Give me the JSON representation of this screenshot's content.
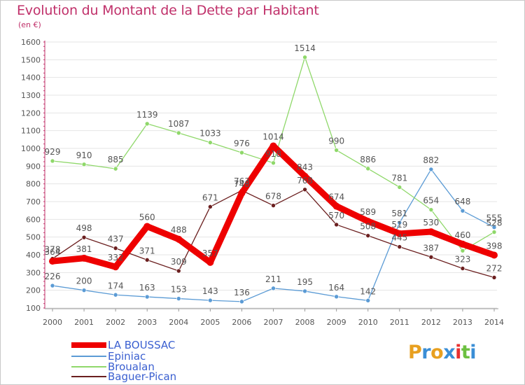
{
  "header": {
    "title": "Evolution du Montant de la Dette par Habitant",
    "unit": "(en €)"
  },
  "chart_data": {
    "type": "line",
    "x": [
      "2000",
      "2001",
      "2002",
      "2003",
      "2004",
      "2005",
      "2006",
      "2007",
      "2008",
      "2009",
      "2010",
      "2011",
      "2012",
      "2013",
      "2014"
    ],
    "ylim": [
      100,
      1600
    ],
    "yticks": [
      100,
      200,
      300,
      400,
      500,
      600,
      700,
      800,
      900,
      1000,
      1100,
      1200,
      1300,
      1400,
      1500,
      1600
    ],
    "grid": "horizontal",
    "legend_position": "bottom-left",
    "series": [
      {
        "name": "LA BOUSSAC",
        "color": "#ee0000",
        "values": [
          364,
          381,
          332,
          560,
          488,
          357,
          748,
          1014,
          843,
          674,
          589,
          519,
          530,
          460,
          398
        ]
      },
      {
        "name": "Epiniac",
        "color": "#5b9bd5",
        "values": [
          226,
          200,
          174,
          163,
          153,
          143,
          136,
          211,
          195,
          164,
          142,
          581,
          882,
          648,
          555
        ]
      },
      {
        "name": "Broualan",
        "color": "#8fd86a",
        "values": [
          929,
          910,
          885,
          1139,
          1087,
          1033,
          976,
          918,
          1514,
          990,
          886,
          781,
          654,
          423,
          528
        ]
      },
      {
        "name": "Baguer-Pican",
        "color": "#6b1f1f",
        "values": [
          378,
          498,
          437,
          371,
          309,
          671,
          763,
          678,
          768,
          570,
          508,
          445,
          387,
          323,
          272
        ]
      }
    ],
    "data_labels": {
      "LA BOUSSAC": [
        "364",
        "381",
        "332",
        "560",
        "488",
        "357",
        "748",
        "1014",
        "843",
        "674",
        "589",
        "519",
        "530",
        "460",
        "398"
      ],
      "Epiniac": [
        "226",
        "200",
        "174",
        "163",
        "153",
        "143",
        "136",
        "211",
        "195",
        "164",
        "142",
        "581",
        "882",
        "648",
        "555"
      ],
      "Broualan": [
        "929",
        "910",
        "885",
        "1139",
        "1087",
        "1033",
        "976",
        "918",
        "1514",
        "990",
        "886",
        "781",
        "654",
        "",
        "528"
      ],
      "Baguer-Pican": [
        "378",
        "498",
        "437",
        "371",
        "309",
        "671",
        "763",
        "678",
        "768",
        "570",
        "508",
        "445",
        "387",
        "323",
        "272"
      ]
    }
  },
  "legend": {
    "items": [
      "LA BOUSSAC",
      "Epiniac",
      "Broualan",
      "Baguer-Pican"
    ]
  },
  "logo": {
    "letters": [
      "P",
      "r",
      "o",
      "x",
      "i",
      "t",
      "i"
    ],
    "colors": [
      "#e8a020",
      "#3a8ed6",
      "#e8a020",
      "#3a8ed6",
      "#e83030",
      "#6cc040",
      "#3a8ed6"
    ]
  }
}
